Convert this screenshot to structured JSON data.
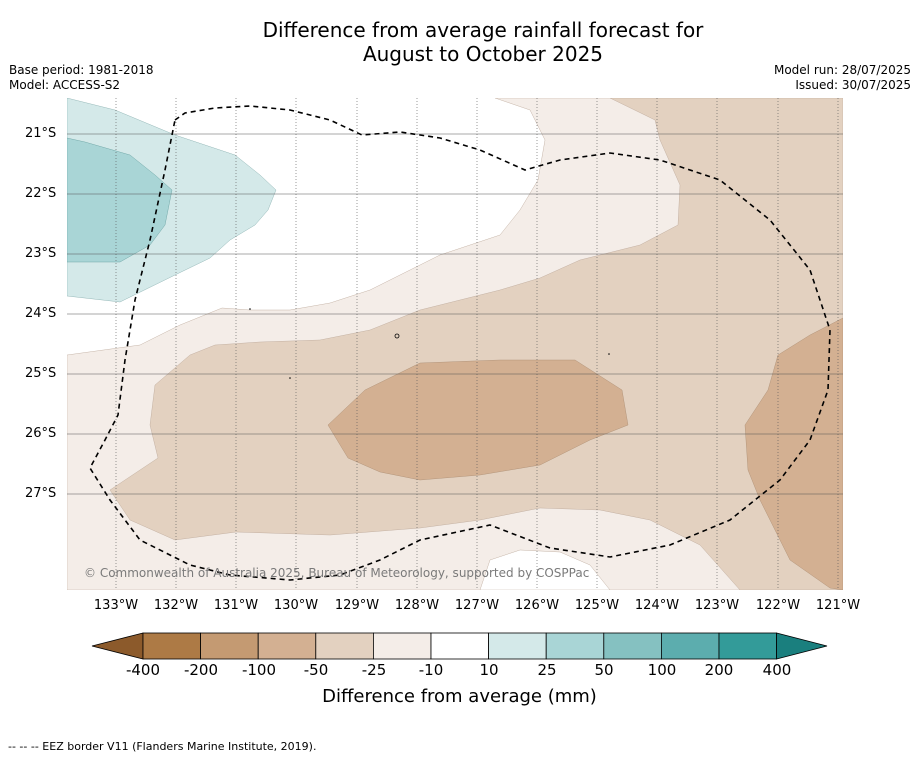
{
  "title_line1": "Difference from average rainfall forecast for",
  "title_line2": "August to October 2025",
  "base_period": "Base period: 1981-2018",
  "model": "Model: ACCESS-S2",
  "model_run": "Model run: 28/07/2025",
  "issued": "Issued: 30/07/2025",
  "lat_labels": [
    "21°S",
    "22°S",
    "23°S",
    "24°S",
    "25°S",
    "26°S",
    "27°S"
  ],
  "lon_labels": [
    "133°W",
    "132°W",
    "131°W",
    "130°W",
    "129°W",
    "128°W",
    "127°W",
    "126°W",
    "125°W",
    "124°W",
    "123°W",
    "122°W",
    "121°W"
  ],
  "copyright": "© Commonwealth of Australia 2025, Bureau of Meteorology, supported by COSPPac",
  "colorbar": {
    "labels": [
      "-400",
      "-200",
      "-100",
      "-50",
      "-25",
      "-10",
      "10",
      "25",
      "50",
      "100",
      "200",
      "400"
    ],
    "colors": [
      "#8c5a2b",
      "#ad7a45",
      "#c49a72",
      "#d3b092",
      "#e3d1c0",
      "#f4ede8",
      "#ffffff",
      "#d4e9e9",
      "#a9d5d6",
      "#85c1c1",
      "#5cadae",
      "#339b99",
      "#1a7f7e"
    ],
    "title": "Difference from average (mm)"
  },
  "footnote": "--  --  -- EEZ border V11 (Flanders Marine Institute, 2019)."
}
